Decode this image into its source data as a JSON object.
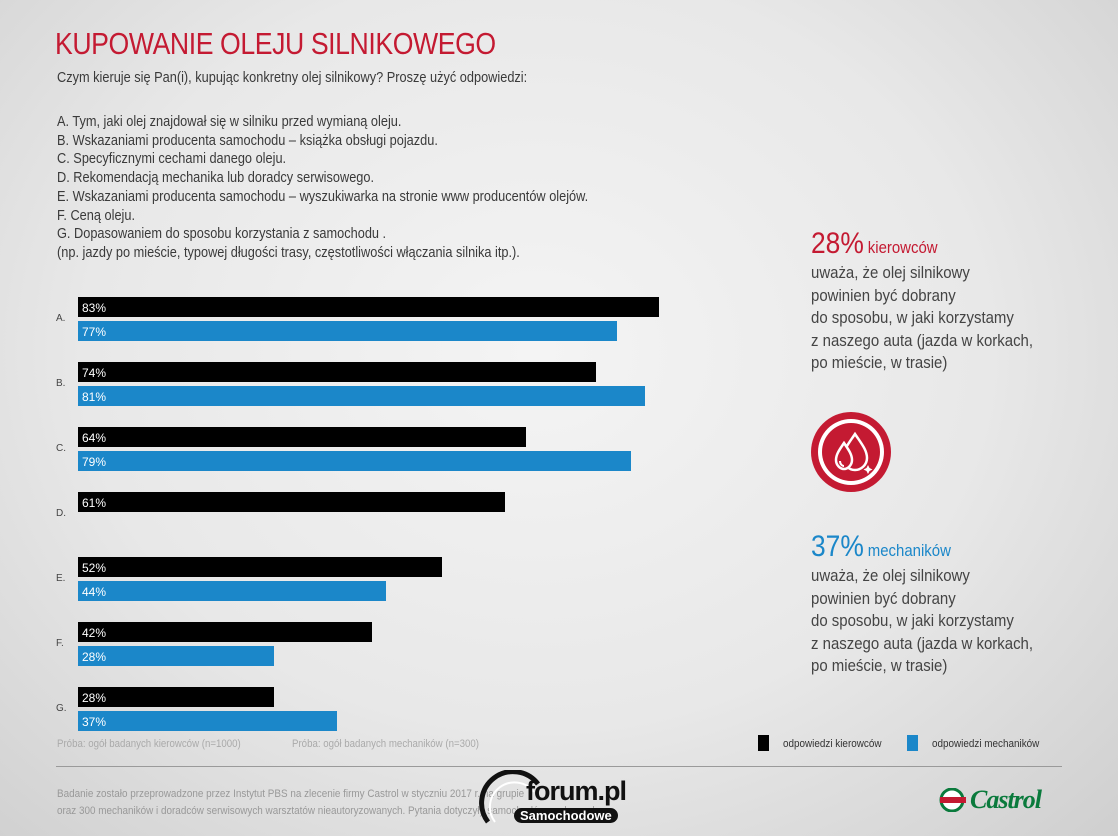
{
  "header": {
    "title": "KUPOWANIE OLEJU SILNIKOWEGO",
    "question": "Czym kieruje się Pan(i), kupując konkretny olej silnikowy? Proszę użyć odpowiedzi:",
    "answers": [
      "A. Tym, jaki olej znajdował się w silniku przed wymianą oleju.",
      "B. Wskazaniami producenta samochodu – książka obsługi pojazdu.",
      "C. Specyficznymi cechami danego oleju.",
      "D. Rekomendacją mechanika lub doradcy serwisowego.",
      "E. Wskazaniami producenta samochodu – wyszukiwarka na stronie www producentów olejów.",
      "F. Ceną oleju.",
      "G. Dopasowaniem do sposobu korzystania z samochodu .",
      "(np. jazdy po mieście, typowej długości trasy, częstotliwości włączania silnika itp.)."
    ]
  },
  "chart_data": {
    "type": "bar",
    "orientation": "horizontal",
    "categories": [
      "A.",
      "B.",
      "C.",
      "D.",
      "E.",
      "F.",
      "G."
    ],
    "series": [
      {
        "name": "odpowiedzi kierowców",
        "color": "#000000",
        "values": [
          83,
          74,
          64,
          61,
          52,
          42,
          28
        ],
        "labels": [
          "83%",
          "74%",
          "64%",
          "61%",
          "52%",
          "42%",
          "28%"
        ]
      },
      {
        "name": "odpowiedzi mechaników",
        "color": "#1b87c9",
        "values": [
          77,
          81,
          79,
          null,
          44,
          28,
          37
        ],
        "labels": [
          "77%",
          "81%",
          "79%",
          "",
          "44%",
          "28%",
          "37%"
        ]
      }
    ],
    "xlim": [
      0,
      100
    ],
    "legend_position": "bottom-right",
    "grid": false
  },
  "stats": {
    "drivers": {
      "value": "28%",
      "unit": "kierowców",
      "color": "#c41a32",
      "text": "uważa, że olej silnikowy\npowinien być dobrany\ndo sposobu, w jaki korzystamy\nz naszego auta (jazda w korkach,\npo mieście, w trasie)"
    },
    "mechanics": {
      "value": "37%",
      "unit": "mechaników",
      "color": "#1b87c9",
      "text": "uważa, że olej silnikowy\npowinien być dobrany\ndo sposobu, w jaki korzystamy\nz naszego auta (jazda w korkach,\npo mieście, w trasie)"
    },
    "icon": "oil-drops-icon"
  },
  "footer": {
    "sample_drivers": "Próba: ogół badanych kierowców (n=1000)",
    "sample_mechanics": "Próba: ogół badanych mechaników (n=300)",
    "legend_drivers": "odpowiedzi kierowców",
    "legend_mechanics": "odpowiedzi mechaników",
    "source_line1": "Badanie zostało przeprowadzone przez Instytut PBS na zlecenie firmy Castrol w styczniu 2017 r. na grupie",
    "source_line2": "oraz 300 mechaników i doradców serwisowych warsztatów nieautoryzowanych. Pytania dotyczyły samochodów osobowych."
  },
  "watermark": {
    "text1": "forum.pl",
    "text2": "Samochodowe"
  },
  "brand": {
    "name": "Castrol"
  }
}
